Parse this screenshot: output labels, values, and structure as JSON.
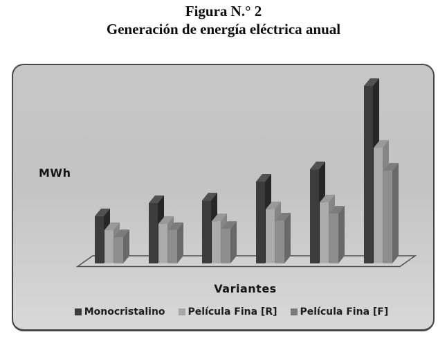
{
  "page": {
    "background": "#ffffff"
  },
  "title": {
    "line1": "Figura N.° 2",
    "line2": "Generación de energía eléctrica anual"
  },
  "panel": {
    "border_color": "#474747",
    "background_top": "#c7c7c7",
    "background_bottom": "#d8d8d8",
    "floor_fill": "#d1d1d1",
    "floor_stroke": "#4f4f4f"
  },
  "chart_data": {
    "type": "bar",
    "style": "3d-clustered-column",
    "title": "Figura N.° 2",
    "subtitle": "Generación de energía eléctrica anual",
    "xlabel": "Variantes",
    "ylabel": "MWh",
    "category_count": 6,
    "category_labels_visible": false,
    "numeric_axis_visible": false,
    "value_scale": "relative bar height, tallest bar = 100 (no numeric scale printed)",
    "grid": false,
    "legend_position": "bottom",
    "series": [
      {
        "name": "Monocristalino",
        "values": [
          26.6,
          34.0,
          35.5,
          46.1,
          53.1,
          100
        ],
        "colors": {
          "front": "#3c3c3c",
          "side": "#262626",
          "top": "#515151"
        }
      },
      {
        "name": "Película Fina [R]",
        "values": [
          18.8,
          22.3,
          23.8,
          30.5,
          34.4,
          65.2
        ],
        "colors": {
          "front": "#ababab",
          "side": "#858585",
          "top": "#999999"
        }
      },
      {
        "name": "Película Fina [F]",
        "values": [
          14.8,
          18.8,
          19.5,
          24.2,
          28.1,
          52.3
        ],
        "colors": {
          "front": "#8e8e8e",
          "side": "#696969",
          "top": "#7c7c7c"
        }
      }
    ],
    "legend": {
      "swatch_colors": [
        "#3c3c3c",
        "#a7a7a7",
        "#7a7a7a"
      ]
    }
  }
}
